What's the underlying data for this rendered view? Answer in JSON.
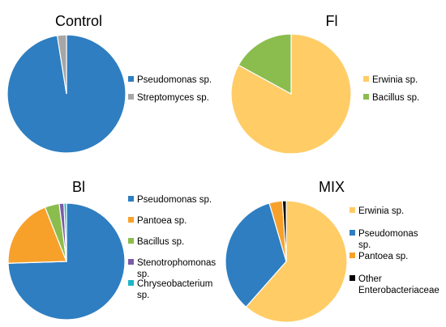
{
  "chart_data": [
    {
      "type": "pie",
      "title": "Control",
      "categories": [
        "Pseudomonas sp.",
        "Streptomyces sp."
      ],
      "values": [
        97.5,
        2.5
      ],
      "colors": [
        "#2E7EC1",
        "#A6A6A6"
      ],
      "legend": "right"
    },
    {
      "type": "pie",
      "title": "Fl",
      "categories": [
        "Erwinia sp.",
        "Bacillus sp."
      ],
      "values": [
        83,
        17
      ],
      "colors": [
        "#FFCC66",
        "#8BBD4E"
      ],
      "legend": "right"
    },
    {
      "type": "pie",
      "title": "Bl",
      "categories": [
        "Pseudomonas sp.",
        "Pantoea sp.",
        "Bacillus sp.",
        "Stenotrophomonas sp.",
        "Chryseobacterium sp."
      ],
      "values": [
        74.5,
        19.5,
        4,
        1.3,
        0.7
      ],
      "colors": [
        "#2E7EC1",
        "#F7A12B",
        "#8BBD4E",
        "#7B5BA6",
        "#1FB5C8"
      ],
      "legend": "right"
    },
    {
      "type": "pie",
      "title": "MIX",
      "categories": [
        "Erwinia sp.",
        "Pseudomonas sp.",
        "Pantoea sp.",
        "Other Enterobacteriaceae"
      ],
      "values": [
        61.5,
        34,
        3.5,
        1
      ],
      "colors": [
        "#FFCC66",
        "#2E7EC1",
        "#F7A12B",
        "#000000"
      ],
      "legend": "right"
    }
  ]
}
